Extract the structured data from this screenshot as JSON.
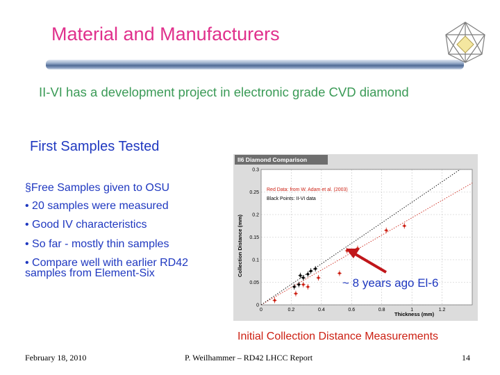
{
  "slide": {
    "title": "Material and Manufacturers",
    "headline": "II-VI has a development project in electronic grade CVD diamond",
    "subheading": "First Samples Tested",
    "bullets": [
      "§Free Samples given to OSU",
      "• 20 samples were measured",
      "• Good IV characteristics",
      "• So far - mostly thin samples",
      "• Compare well with earlier RD42",
      "samples from Element-Six"
    ],
    "annotation": "~ 8 years ago El-6",
    "caption": "Initial Collection Distance Measurements",
    "logo_icon": "diamond-crystal-icon"
  },
  "footer": {
    "date": "February 18, 2010",
    "center": "P. Weilhammer – RD42 LHCC Report",
    "page": "14"
  },
  "colors": {
    "title": "#e0308c",
    "headline": "#3a9a56",
    "body": "#1f38c0",
    "caption": "#cc1f12",
    "red_points": "#cc1f12",
    "black_points": "#000000"
  },
  "chart_data": {
    "type": "scatter",
    "title": "II6 Diamond Comparison",
    "xlabel": "Thickness (mm)",
    "ylabel": "Collection Distance (mm)",
    "xlim": [
      0,
      1.4
    ],
    "ylim": [
      0,
      0.3
    ],
    "x_ticks": [
      "0",
      "0.2",
      "0.4",
      "0.6",
      "0.8",
      "1",
      "1.2"
    ],
    "y_ticks": [
      "0",
      "0.05",
      "0.1",
      "0.15",
      "0.2",
      "0.25",
      "0.3"
    ],
    "grid": true,
    "legend": [
      {
        "label": "Red Data: from W. Adam et al. (2003)",
        "color": "#cc1f12"
      },
      {
        "label": "Black Points: II-VI data",
        "color": "#000000"
      }
    ],
    "series": [
      {
        "name": "Red Data: from W. Adam et al. (2003)",
        "color": "#cc1f12",
        "points": [
          [
            0.09,
            0.01
          ],
          [
            0.23,
            0.025
          ],
          [
            0.28,
            0.045
          ],
          [
            0.31,
            0.04
          ],
          [
            0.38,
            0.06
          ],
          [
            0.52,
            0.07
          ],
          [
            0.57,
            0.12
          ],
          [
            0.64,
            0.125
          ],
          [
            0.83,
            0.165
          ],
          [
            0.95,
            0.175
          ]
        ]
      },
      {
        "name": "Black Points: II-VI data",
        "color": "#000000",
        "points": [
          [
            0.26,
            0.065
          ],
          [
            0.28,
            0.06
          ],
          [
            0.31,
            0.068
          ],
          [
            0.33,
            0.075
          ],
          [
            0.22,
            0.04
          ],
          [
            0.25,
            0.045
          ],
          [
            0.36,
            0.08
          ]
        ]
      }
    ],
    "trendlines": [
      {
        "style": "dotted",
        "color": "#cc1f12",
        "from": [
          0,
          0
        ],
        "to": [
          1.4,
          0.27
        ]
      },
      {
        "style": "dotted",
        "color": "#000000",
        "from": [
          0,
          0
        ],
        "to": [
          1.32,
          0.3
        ]
      }
    ]
  }
}
